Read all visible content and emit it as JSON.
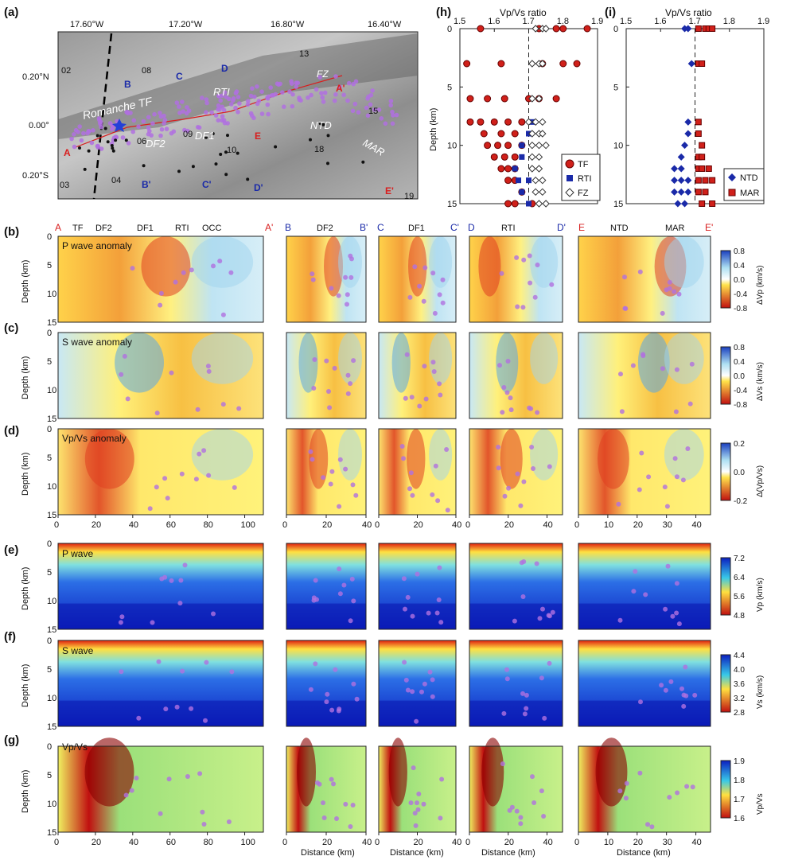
{
  "panels": {
    "a": "(a)",
    "b": "(b)",
    "c": "(c)",
    "d": "(d)",
    "e": "(e)",
    "f": "(f)",
    "g": "(g)",
    "h": "(h)",
    "i": "(i)"
  },
  "map": {
    "lon_ticks": [
      "17.60°W",
      "17.20°W",
      "16.80°W",
      "16.40°W"
    ],
    "lat_ticks": [
      "0.20°N",
      "0.00°",
      "0.20°S"
    ],
    "feature_labels": [
      "Romanche TF",
      "DF2",
      "DF1",
      "RTI",
      "FZ",
      "NTD",
      "MAR"
    ],
    "stations": [
      "02",
      "08",
      "13",
      "15",
      "06",
      "09",
      "10",
      "18",
      "03",
      "04",
      "19"
    ],
    "profile_labels": [
      "A",
      "A'",
      "B",
      "B'",
      "C",
      "C'",
      "D",
      "D'",
      "E",
      "E'"
    ]
  },
  "ratio_plots": {
    "axis_title": "Vp/Vs ratio",
    "x_ticks": [
      "1.5",
      "1.6",
      "1.7",
      "1.8",
      "1.9"
    ],
    "depth_ticks": [
      "0",
      "5",
      "10",
      "15"
    ],
    "depth_label": "Depth (km)",
    "legend_h": [
      "TF",
      "RTI",
      "FZ"
    ],
    "legend_i": [
      "NTD",
      "MAR"
    ]
  },
  "sections": {
    "depth_label": "Depth (km)",
    "distance_label": "Distance (km)",
    "depth_ticks": [
      "0",
      "5",
      "10",
      "15"
    ],
    "profile_ends": [
      "A",
      "A'",
      "B",
      "B'",
      "C",
      "C'",
      "D",
      "D'",
      "E",
      "E'"
    ],
    "top_labels_a": [
      "TF",
      "DF2",
      "DF1",
      "RTI",
      "OCC"
    ],
    "top_label_b": "DF2",
    "top_label_c": "DF1",
    "top_label_d": "RTI",
    "top_labels_e": [
      "NTD",
      "MAR"
    ],
    "x_ticks_a": [
      "0",
      "20",
      "40",
      "60",
      "80",
      "100"
    ],
    "x_ticks_b": [
      "0",
      "20",
      "40"
    ],
    "x_ticks_c": [
      "0",
      "20",
      "40"
    ],
    "x_ticks_d": [
      "0",
      "20",
      "40"
    ],
    "x_ticks_e": [
      "0",
      "10",
      "20",
      "30",
      "40"
    ],
    "row_titles": {
      "b": "P wave anomaly",
      "c": "S wave anomaly",
      "d": "Vp/Vs anomaly",
      "e": "P wave",
      "f": "S wave",
      "g": "Vp/Vs"
    },
    "colorbars": {
      "b": {
        "label": "ΔVp (km/s)",
        "ticks": [
          "0.8",
          "0.4",
          "0.0",
          "-0.4",
          "-0.8"
        ]
      },
      "c": {
        "label": "ΔVs (km/s)",
        "ticks": [
          "0.8",
          "0.4",
          "0.0",
          "-0.4",
          "-0.8"
        ]
      },
      "d": {
        "label": "Δ(Vp/Vs)",
        "ticks": [
          "0.2",
          "0.0",
          "-0.2"
        ]
      },
      "e": {
        "label": "Vp (km/s)",
        "ticks": [
          "7.2",
          "6.4",
          "5.6",
          "4.8"
        ]
      },
      "f": {
        "label": "Vs (km/s)",
        "ticks": [
          "4.4",
          "4.0",
          "3.6",
          "3.2",
          "2.8"
        ]
      },
      "g": {
        "label": "Vp/Vs",
        "ticks": [
          "1.9",
          "1.8",
          "1.7",
          "1.6"
        ]
      }
    }
  },
  "chart_data": [
    {
      "type": "scatter",
      "panel": "h",
      "title": "Vp/Vs ratio",
      "xlabel": "",
      "ylabel": "Depth (km)",
      "xlim": [
        1.5,
        1.9
      ],
      "ylim": [
        15,
        0
      ],
      "reference_line_x": 1.7,
      "series": [
        {
          "name": "TF",
          "color": "#d0201a",
          "points": [
            [
              1.56,
              0
            ],
            [
              1.73,
              0
            ],
            [
              1.78,
              0
            ],
            [
              1.8,
              0
            ],
            [
              1.87,
              0
            ],
            [
              1.52,
              3
            ],
            [
              1.62,
              3
            ],
            [
              1.74,
              3
            ],
            [
              1.8,
              3
            ],
            [
              1.84,
              3
            ],
            [
              1.53,
              6
            ],
            [
              1.58,
              6
            ],
            [
              1.63,
              6
            ],
            [
              1.7,
              6
            ],
            [
              1.73,
              6
            ],
            [
              1.78,
              6
            ],
            [
              1.53,
              8
            ],
            [
              1.56,
              8
            ],
            [
              1.6,
              8
            ],
            [
              1.64,
              8
            ],
            [
              1.68,
              8
            ],
            [
              1.57,
              9
            ],
            [
              1.62,
              9
            ],
            [
              1.66,
              9
            ],
            [
              1.58,
              10
            ],
            [
              1.61,
              10
            ],
            [
              1.64,
              10
            ],
            [
              1.68,
              10
            ],
            [
              1.6,
              11
            ],
            [
              1.63,
              11
            ],
            [
              1.66,
              11
            ],
            [
              1.62,
              12
            ],
            [
              1.64,
              12
            ],
            [
              1.66,
              12
            ],
            [
              1.64,
              13
            ],
            [
              1.66,
              13
            ],
            [
              1.68,
              14
            ],
            [
              1.64,
              15
            ],
            [
              1.66,
              15
            ],
            [
              1.71,
              15
            ]
          ]
        },
        {
          "name": "RTI",
          "color": "#1a2aa8",
          "points": [
            [
              1.71,
              8
            ],
            [
              1.7,
              9
            ],
            [
              1.68,
              10
            ],
            [
              1.68,
              11
            ],
            [
              1.66,
              12
            ],
            [
              1.67,
              13
            ],
            [
              1.7,
              13
            ],
            [
              1.68,
              14
            ],
            [
              1.7,
              15
            ]
          ]
        },
        {
          "name": "FZ",
          "color": "#ffffff",
          "points": [
            [
              1.72,
              0
            ],
            [
              1.74,
              0
            ],
            [
              1.75,
              0
            ],
            [
              1.71,
              3
            ],
            [
              1.73,
              3
            ],
            [
              1.74,
              3
            ],
            [
              1.71,
              6
            ],
            [
              1.73,
              6
            ],
            [
              1.7,
              8
            ],
            [
              1.72,
              8
            ],
            [
              1.74,
              8
            ],
            [
              1.71,
              9
            ],
            [
              1.73,
              9
            ],
            [
              1.74,
              9
            ],
            [
              1.71,
              10
            ],
            [
              1.73,
              10
            ],
            [
              1.75,
              10
            ],
            [
              1.71,
              11
            ],
            [
              1.73,
              11
            ],
            [
              1.71,
              12
            ],
            [
              1.73,
              12
            ],
            [
              1.72,
              13
            ],
            [
              1.74,
              13
            ],
            [
              1.72,
              14
            ],
            [
              1.74,
              14
            ],
            [
              1.73,
              15
            ],
            [
              1.75,
              15
            ]
          ]
        }
      ]
    },
    {
      "type": "scatter",
      "panel": "i",
      "title": "Vp/Vs ratio",
      "xlabel": "",
      "ylabel": "",
      "xlim": [
        1.5,
        1.9
      ],
      "ylim": [
        15,
        0
      ],
      "reference_line_x": 1.7,
      "series": [
        {
          "name": "NTD",
          "color": "#1a2aa8",
          "points": [
            [
              1.67,
              0
            ],
            [
              1.68,
              0
            ],
            [
              1.69,
              3
            ],
            [
              1.68,
              8
            ],
            [
              1.68,
              9
            ],
            [
              1.67,
              10
            ],
            [
              1.66,
              11
            ],
            [
              1.64,
              12
            ],
            [
              1.66,
              12
            ],
            [
              1.64,
              13
            ],
            [
              1.66,
              13
            ],
            [
              1.68,
              13
            ],
            [
              1.64,
              14
            ],
            [
              1.66,
              14
            ],
            [
              1.68,
              14
            ],
            [
              1.65,
              15
            ],
            [
              1.67,
              15
            ]
          ]
        },
        {
          "name": "MAR",
          "color": "#d0201a",
          "points": [
            [
              1.71,
              0
            ],
            [
              1.73,
              0
            ],
            [
              1.74,
              0
            ],
            [
              1.75,
              0
            ],
            [
              1.71,
              3
            ],
            [
              1.72,
              3
            ],
            [
              1.71,
              8
            ],
            [
              1.71,
              9
            ],
            [
              1.72,
              10
            ],
            [
              1.71,
              11
            ],
            [
              1.72,
              11
            ],
            [
              1.71,
              12
            ],
            [
              1.72,
              12
            ],
            [
              1.74,
              12
            ],
            [
              1.71,
              13
            ],
            [
              1.73,
              13
            ],
            [
              1.75,
              13
            ],
            [
              1.71,
              14
            ],
            [
              1.73,
              14
            ],
            [
              1.72,
              15
            ],
            [
              1.75,
              15
            ]
          ]
        }
      ]
    }
  ]
}
